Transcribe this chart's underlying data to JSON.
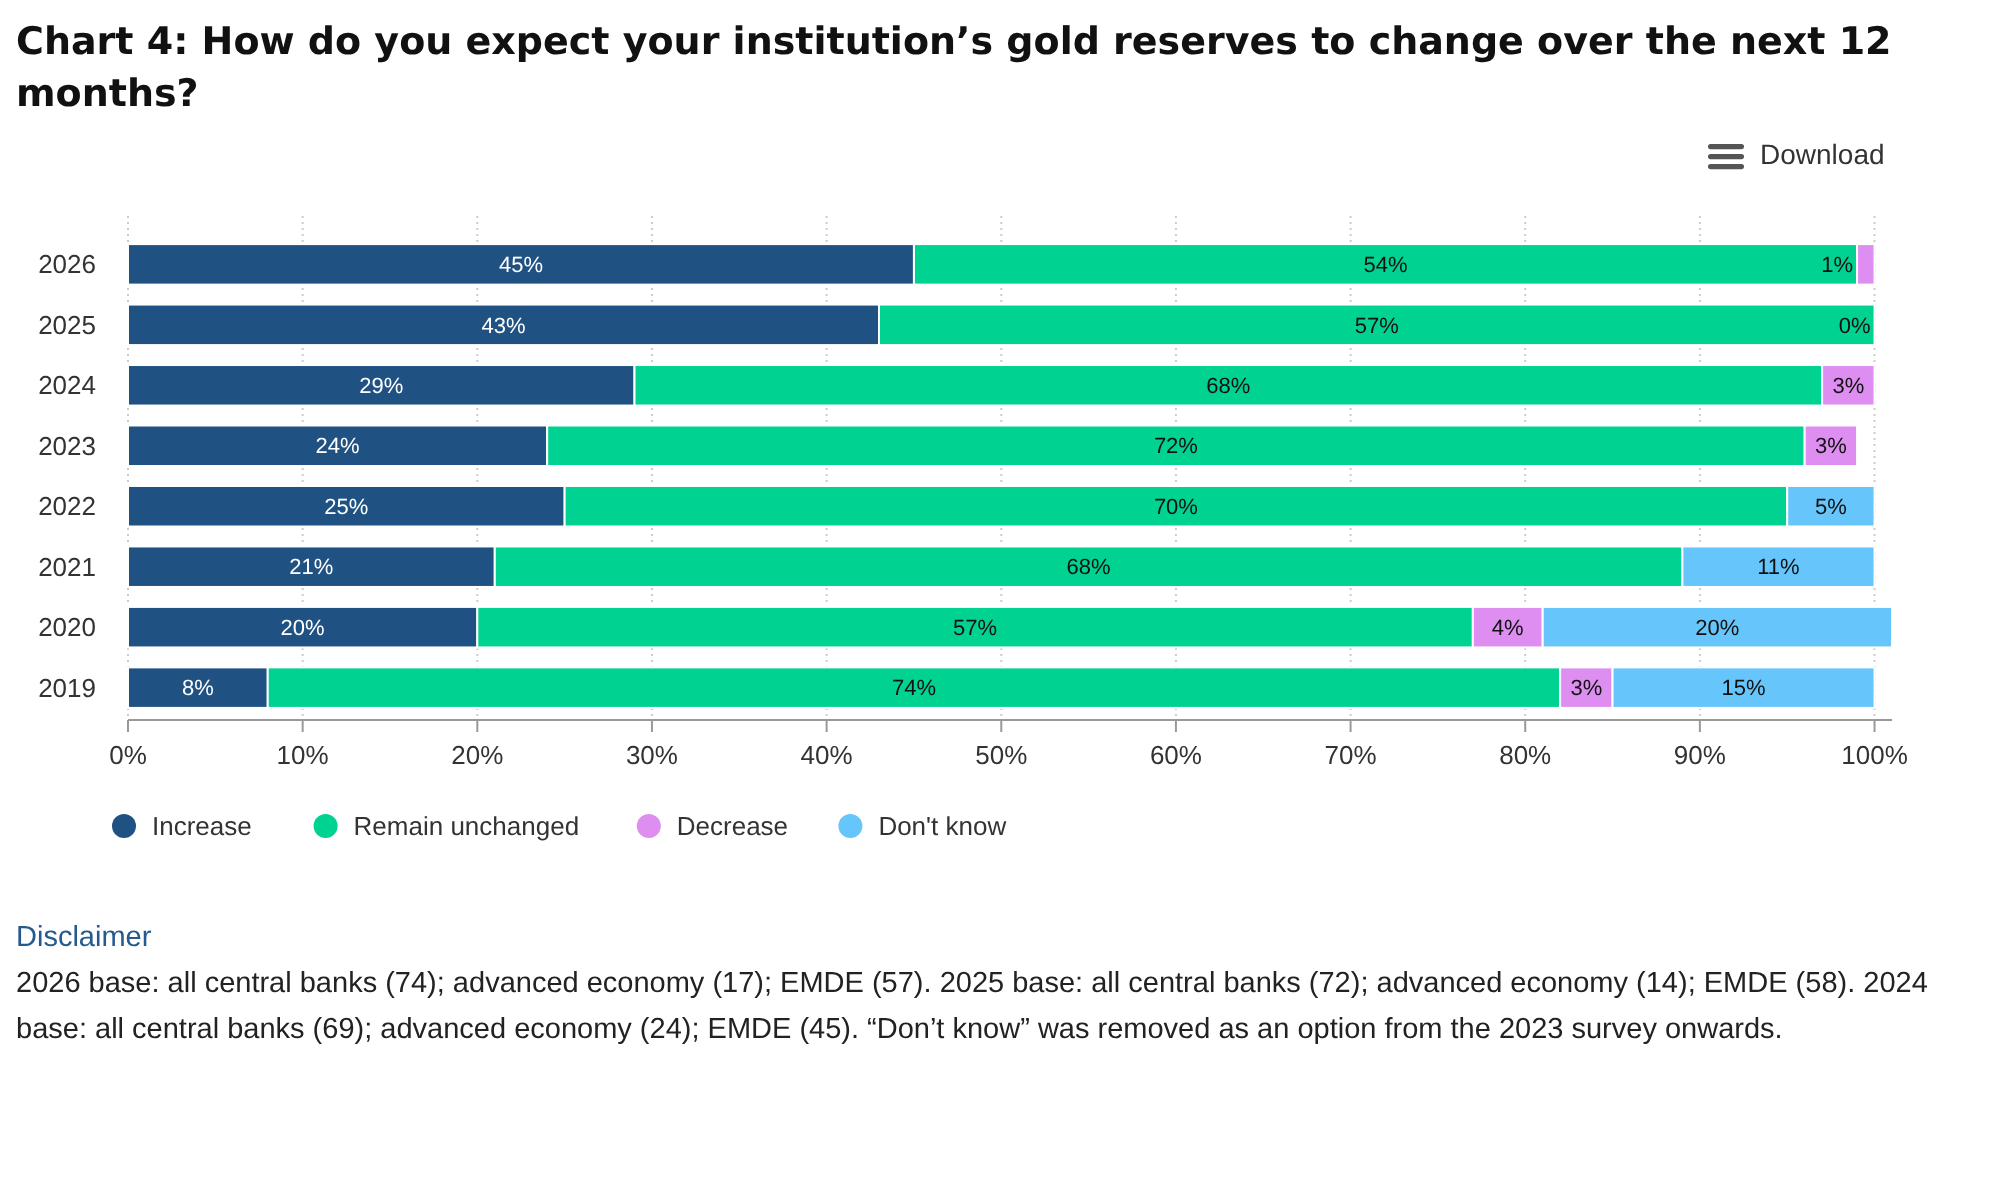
{
  "chart_data": {
    "type": "bar",
    "orientation": "horizontal",
    "stacked": true,
    "title": "Chart 4: How do you expect your institution’s gold reserves to change over the next 12 months?",
    "categories": [
      "2026",
      "2025",
      "2024",
      "2023",
      "2022",
      "2021",
      "2020",
      "2019"
    ],
    "series": [
      {
        "name": "Increase",
        "color": "#1f5283",
        "values": [
          45,
          43,
          29,
          24,
          25,
          21,
          20,
          8
        ],
        "value_labels": [
          "45%",
          "43%",
          "29%",
          "24%",
          "25%",
          "21%",
          "20%",
          "8%"
        ]
      },
      {
        "name": "Remain unchanged",
        "color": "#00d291",
        "values": [
          54,
          57,
          68,
          72,
          70,
          68,
          57,
          74
        ],
        "value_labels": [
          "54%",
          "57%",
          "68%",
          "72%",
          "70%",
          "68%",
          "57%",
          "74%"
        ]
      },
      {
        "name": "Decrease",
        "color": "#dd8ef0",
        "values": [
          1,
          0,
          3,
          3,
          null,
          null,
          4,
          3
        ],
        "value_labels": [
          "1%",
          "0%",
          "3%",
          "3%",
          null,
          null,
          "4%",
          "3%"
        ]
      },
      {
        "name": "Don't know",
        "color": "#66c6fb",
        "values": [
          null,
          null,
          null,
          null,
          5,
          11,
          20,
          15
        ],
        "value_labels": [
          null,
          null,
          null,
          null,
          "5%",
          "11%",
          "20%",
          "15%"
        ]
      }
    ],
    "xlim": [
      0,
      101
    ],
    "xticks": [
      {
        "value": 0,
        "label": "0%"
      },
      {
        "value": 10,
        "label": "10%"
      },
      {
        "value": 20,
        "label": "20%"
      },
      {
        "value": 30,
        "label": "30%"
      },
      {
        "value": 40,
        "label": "40%"
      },
      {
        "value": 50,
        "label": "50%"
      },
      {
        "value": 60,
        "label": "60%"
      },
      {
        "value": 70,
        "label": "70%"
      },
      {
        "value": 80,
        "label": "80%"
      },
      {
        "value": 90,
        "label": "90%"
      },
      {
        "value": 100,
        "label": "100%"
      }
    ],
    "grid": "x",
    "legend": "bottom left",
    "annotations": [
      "Download",
      "Disclaimer",
      "2026 base: all central banks (74); advanced economy (17); EMDE (57). 2025 base: all central banks (72); advanced economy (14); EMDE (58). 2024 base: all central banks (69); advanced economy (24); EMDE (45). “Don’t know” was removed as an option from the 2023 survey onwards."
    ]
  }
}
